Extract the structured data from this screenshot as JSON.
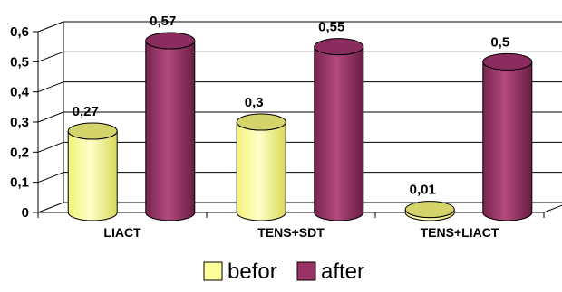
{
  "chart_data": {
    "type": "bar",
    "categories": [
      "LIACT",
      "TENS+SDT",
      "TENS+LIACT"
    ],
    "series": [
      {
        "name": "befor",
        "values": [
          0.27,
          0.3,
          0.01
        ],
        "color": "#FFFF99"
      },
      {
        "name": "after",
        "values": [
          0.57,
          0.55,
          0.5
        ],
        "color": "#993366"
      }
    ],
    "data_labels": [
      [
        "0,27",
        "0,3",
        "0,01"
      ],
      [
        "0,57",
        "0,55",
        "0,5"
      ]
    ],
    "yticks": [
      "0",
      "0,1",
      "0,2",
      "0,3",
      "0,4",
      "0,5",
      "0,6"
    ],
    "ylim": [
      0,
      0.6
    ],
    "grid": true,
    "legend_position": "bottom",
    "three_d": true,
    "title": "",
    "xlabel": "",
    "ylabel": ""
  }
}
